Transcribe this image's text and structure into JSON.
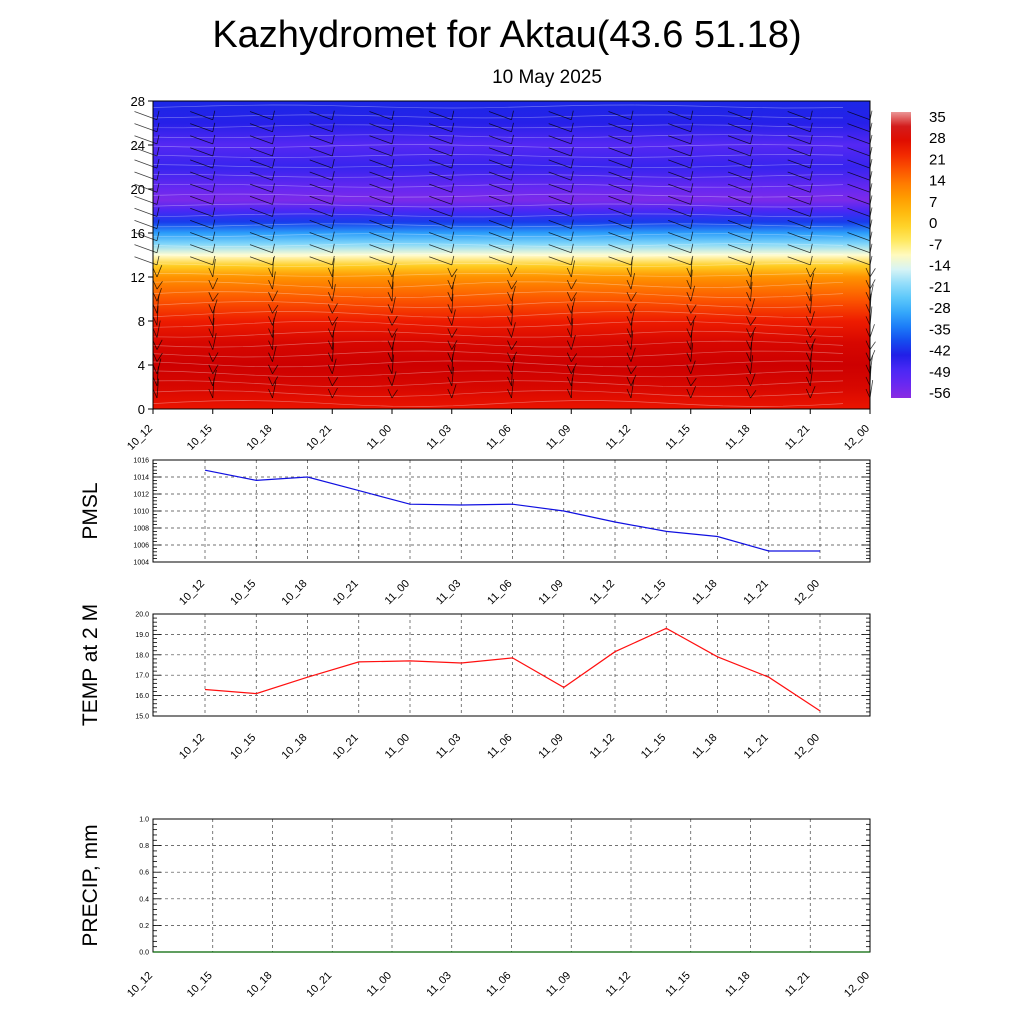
{
  "header": {
    "title": "Kazhydromet for Aktau(43.6 51.18)",
    "subtitle": "10 May 2025"
  },
  "colors": {
    "pmsl_line": "#1010e0",
    "temp_line": "#ff1010",
    "precip_line": "#006400",
    "grid": "#555555"
  },
  "chart_data": [
    {
      "type": "heatmap",
      "panel": "upper-air cross-section (temperature contours with wind barbs)",
      "xlabel": "",
      "ylabel": "",
      "x_ticks": [
        "10_12",
        "10_15",
        "10_18",
        "10_21",
        "11_00",
        "11_03",
        "11_06",
        "11_09",
        "11_12",
        "11_15",
        "11_18",
        "11_21",
        "12_00"
      ],
      "y_ticks": [
        0,
        4,
        8,
        12,
        16,
        20,
        24,
        28
      ],
      "ylim": [
        0,
        28
      ],
      "colorbar_ticks": [
        35,
        28,
        21,
        14,
        7,
        0,
        -7,
        -14,
        -21,
        -28,
        -35,
        -42,
        -49,
        -56
      ],
      "temperature_profile": {
        "levels": [
          0,
          2,
          4,
          6,
          8,
          10,
          12,
          13,
          14,
          15,
          16,
          17,
          18,
          19,
          20,
          22,
          24,
          26,
          28
        ],
        "values": [
          26,
          30,
          32,
          30,
          25,
          18,
          10,
          0,
          -12,
          -22,
          -32,
          -42,
          -50,
          -58,
          -55,
          -48,
          -52,
          -46,
          -44
        ]
      },
      "wind_barbs": "present at every time step and level"
    },
    {
      "type": "line",
      "ylabel": "PMSL",
      "ylim": [
        1004,
        1016
      ],
      "y_ticks": [
        "1004",
        "1006",
        "1008",
        "1010",
        "1012",
        "1014",
        "1016"
      ],
      "categories": [
        "10_12",
        "10_15",
        "10_18",
        "10_21",
        "11_00",
        "11_03",
        "11_06",
        "11_09",
        "11_12",
        "11_15",
        "11_18",
        "11_21",
        "12_00"
      ],
      "values": [
        1014.8,
        1013.6,
        1014.0,
        1012.4,
        1010.8,
        1010.7,
        1010.8,
        1010.0,
        1008.7,
        1007.6,
        1007.0,
        1005.3,
        1005.3
      ],
      "grid": true
    },
    {
      "type": "line",
      "ylabel": "TEMP at 2 M",
      "ylim": [
        15.0,
        20.0
      ],
      "y_ticks": [
        "15.0",
        "16.0",
        "17.0",
        "18.0",
        "19.0",
        "20.0"
      ],
      "categories": [
        "10_12",
        "10_15",
        "10_18",
        "10_21",
        "11_00",
        "11_03",
        "11_06",
        "11_09",
        "11_12",
        "11_15",
        "11_18",
        "11_21",
        "12_00"
      ],
      "values": [
        16.3,
        16.1,
        16.9,
        17.65,
        17.7,
        17.6,
        17.85,
        16.4,
        18.15,
        19.3,
        17.9,
        16.9,
        15.25
      ],
      "grid": true
    },
    {
      "type": "line",
      "ylabel": "PRECIP, mm",
      "ylim": [
        0.0,
        1.0
      ],
      "y_ticks": [
        "0.0",
        "0.2",
        "0.4",
        "0.6",
        "0.8",
        "1.0"
      ],
      "x_ticks": [
        "10_12",
        "10_15",
        "10_18",
        "10_21",
        "11_00",
        "11_03",
        "11_06",
        "11_09",
        "11_12",
        "11_15",
        "11_18",
        "11_21",
        "12_00"
      ],
      "values": [
        0,
        0,
        0,
        0,
        0,
        0,
        0,
        0,
        0,
        0,
        0,
        0,
        0
      ],
      "grid": true
    }
  ]
}
